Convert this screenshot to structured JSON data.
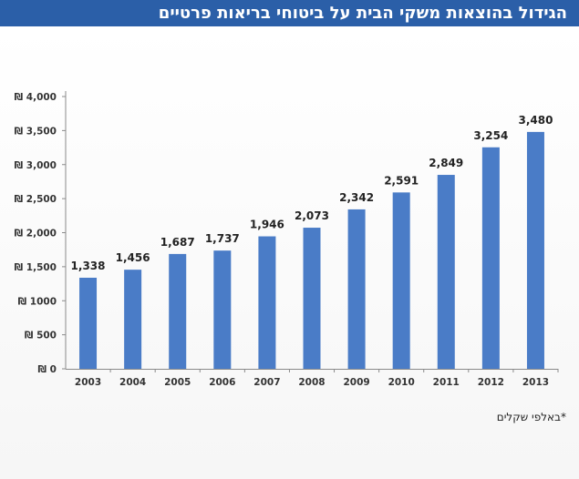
{
  "chart_data": {
    "type": "bar",
    "title": "הגידול בהוצאות משקי הבית על ביטוחי בריאות פרטיים",
    "footnote": "*באלפי שקלים",
    "categories": [
      "2003",
      "2004",
      "2005",
      "2006",
      "2007",
      "2008",
      "2009",
      "2010",
      "2011",
      "2012",
      "2013"
    ],
    "values": [
      1338,
      1456,
      1687,
      1737,
      1946,
      2073,
      2342,
      2591,
      2849,
      3254,
      3480
    ],
    "value_labels": [
      "1,338",
      "1,456",
      "1,687",
      "1,737",
      "1,946",
      "2,073",
      "2,342",
      "2,591",
      "2,849",
      "3,254",
      "3,480"
    ],
    "y_ticks": [
      0,
      500,
      1000,
      1500,
      2000,
      2500,
      3000,
      3500,
      4000
    ],
    "y_tick_labels": [
      "₪ 0",
      "₪ 500",
      "₪ 1000",
      "₪ 1,500",
      "₪ 2,000",
      "₪ 2,500",
      "₪ 3,000",
      "₪ 3,500",
      "₪ 4,000"
    ],
    "ylim": [
      0,
      4000
    ],
    "grid": false,
    "legend": "none",
    "bar_color": "#4a7cc7"
  },
  "colors": {
    "title_bar": "#2b5fa8",
    "title_text": "#ffffff"
  }
}
